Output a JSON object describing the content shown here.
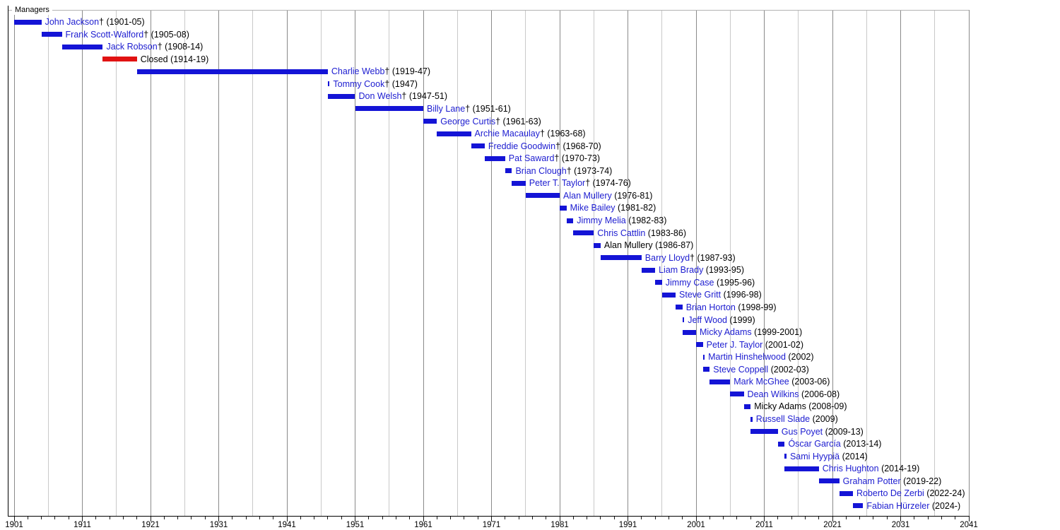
{
  "chart_data": {
    "type": "gantt-timeline",
    "title": "Managers",
    "x_axis": {
      "min": 1901,
      "max": 2041,
      "major_tick_interval": 10,
      "minor_tick_interval": 2,
      "gridline_interval": 5,
      "tick_labels": [
        "1901",
        "1911",
        "1921",
        "1931",
        "1941",
        "1951",
        "1961",
        "1971",
        "1981",
        "1991",
        "2001",
        "2011",
        "2021",
        "2031",
        "2041"
      ]
    },
    "colors": {
      "bar_blue": "#1414d6",
      "bar_red": "#e11212",
      "link_text": "#1c1cd0",
      "plain_text": "#000000",
      "grid_decade": "#8a8a8a",
      "grid_minor": "#c9c9c9",
      "frame": "#b3b3b3",
      "axis": "#000000"
    },
    "bars": [
      {
        "name": "John Jackson",
        "dagger": true,
        "years": "(1901-05)",
        "start": 1901,
        "end": 1905,
        "color": "blue",
        "link": true
      },
      {
        "name": "Frank Scott-Walford",
        "dagger": true,
        "years": "(1905-08)",
        "start": 1905,
        "end": 1908,
        "color": "blue",
        "link": true
      },
      {
        "name": "Jack Robson",
        "dagger": true,
        "years": "(1908-14)",
        "start": 1908,
        "end": 1914,
        "color": "blue",
        "link": true
      },
      {
        "name": "Closed",
        "dagger": false,
        "years": "(1914-19)",
        "start": 1914,
        "end": 1919,
        "color": "red",
        "link": false
      },
      {
        "name": "Charlie Webb",
        "dagger": true,
        "years": "(1919-47)",
        "start": 1919,
        "end": 1947,
        "color": "blue",
        "link": true
      },
      {
        "name": "Tommy Cook",
        "dagger": true,
        "years": "(1947)",
        "start": 1947,
        "end": 1947,
        "color": "blue",
        "link": true
      },
      {
        "name": "Don Welsh",
        "dagger": true,
        "years": "(1947-51)",
        "start": 1947,
        "end": 1951,
        "color": "blue",
        "link": true
      },
      {
        "name": "Billy Lane",
        "dagger": true,
        "years": "(1951-61)",
        "start": 1951,
        "end": 1961,
        "color": "blue",
        "link": true
      },
      {
        "name": "George Curtis",
        "dagger": true,
        "years": "(1961-63)",
        "start": 1961,
        "end": 1963,
        "color": "blue",
        "link": true
      },
      {
        "name": "Archie Macaulay",
        "dagger": true,
        "years": "(1963-68)",
        "start": 1963,
        "end": 1968,
        "color": "blue",
        "link": true
      },
      {
        "name": "Freddie Goodwin",
        "dagger": true,
        "years": "(1968-70)",
        "start": 1968,
        "end": 1970,
        "color": "blue",
        "link": true
      },
      {
        "name": "Pat Saward",
        "dagger": true,
        "years": "(1970-73)",
        "start": 1970,
        "end": 1973,
        "color": "blue",
        "link": true
      },
      {
        "name": "Brian Clough",
        "dagger": true,
        "years": "(1973-74)",
        "start": 1973,
        "end": 1974,
        "color": "blue",
        "link": true
      },
      {
        "name": "Peter T. Taylor",
        "dagger": true,
        "years": "(1974-76)",
        "start": 1974,
        "end": 1976,
        "color": "blue",
        "link": true
      },
      {
        "name": "Alan Mullery",
        "dagger": false,
        "years": "(1976-81)",
        "start": 1976,
        "end": 1981,
        "color": "blue",
        "link": true
      },
      {
        "name": "Mike Bailey",
        "dagger": false,
        "years": "(1981-82)",
        "start": 1981,
        "end": 1982,
        "color": "blue",
        "link": true
      },
      {
        "name": "Jimmy Melia",
        "dagger": false,
        "years": "(1982-83)",
        "start": 1982,
        "end": 1983,
        "color": "blue",
        "link": true
      },
      {
        "name": "Chris Cattlin",
        "dagger": false,
        "years": "(1983-86)",
        "start": 1983,
        "end": 1986,
        "color": "blue",
        "link": true
      },
      {
        "name": "Alan Mullery",
        "dagger": false,
        "years": "(1986-87)",
        "start": 1986,
        "end": 1987,
        "color": "blue",
        "link": false
      },
      {
        "name": "Barry Lloyd",
        "dagger": true,
        "years": "(1987-93)",
        "start": 1987,
        "end": 1993,
        "color": "blue",
        "link": true
      },
      {
        "name": "Liam Brady",
        "dagger": false,
        "years": "(1993-95)",
        "start": 1993,
        "end": 1995,
        "color": "blue",
        "link": true
      },
      {
        "name": "Jimmy Case",
        "dagger": false,
        "years": "(1995-96)",
        "start": 1995,
        "end": 1996,
        "color": "blue",
        "link": true
      },
      {
        "name": "Steve Gritt",
        "dagger": false,
        "years": "(1996-98)",
        "start": 1996,
        "end": 1998,
        "color": "blue",
        "link": true
      },
      {
        "name": "Brian Horton",
        "dagger": false,
        "years": "(1998-99)",
        "start": 1998,
        "end": 1999,
        "color": "blue",
        "link": true
      },
      {
        "name": "Jeff Wood",
        "dagger": false,
        "years": "(1999)",
        "start": 1999,
        "end": 1999,
        "color": "blue",
        "link": true
      },
      {
        "name": "Micky Adams",
        "dagger": false,
        "years": "(1999-2001)",
        "start": 1999,
        "end": 2001,
        "color": "blue",
        "link": true
      },
      {
        "name": "Peter J. Taylor",
        "dagger": false,
        "years": "(2001-02)",
        "start": 2001,
        "end": 2002,
        "color": "blue",
        "link": true
      },
      {
        "name": "Martin Hinshelwood",
        "dagger": false,
        "years": "(2002)",
        "start": 2002,
        "end": 2002,
        "color": "blue",
        "link": true
      },
      {
        "name": "Steve Coppell",
        "dagger": false,
        "years": "(2002-03)",
        "start": 2002,
        "end": 2003,
        "color": "blue",
        "link": true
      },
      {
        "name": "Mark McGhee",
        "dagger": false,
        "years": "(2003-06)",
        "start": 2003,
        "end": 2006,
        "color": "blue",
        "link": true
      },
      {
        "name": "Dean Wilkins",
        "dagger": false,
        "years": "(2006-08)",
        "start": 2006,
        "end": 2008,
        "color": "blue",
        "link": true
      },
      {
        "name": "Micky Adams",
        "dagger": false,
        "years": "(2008-09)",
        "start": 2008,
        "end": 2009,
        "color": "blue",
        "link": false
      },
      {
        "name": "Russell Slade",
        "dagger": false,
        "years": "(2009)",
        "start": 2009,
        "end": 2009,
        "color": "blue",
        "link": true
      },
      {
        "name": "Gus Poyet",
        "dagger": false,
        "years": "(2009-13)",
        "start": 2009,
        "end": 2013,
        "color": "blue",
        "link": true
      },
      {
        "name": "Óscar García",
        "dagger": false,
        "years": "(2013-14)",
        "start": 2013,
        "end": 2014,
        "color": "blue",
        "link": true
      },
      {
        "name": "Sami Hyypiä",
        "dagger": false,
        "years": "(2014)",
        "start": 2014,
        "end": 2014,
        "color": "blue",
        "link": true
      },
      {
        "name": "Chris Hughton",
        "dagger": false,
        "years": "(2014-19)",
        "start": 2014,
        "end": 2019,
        "color": "blue",
        "link": true
      },
      {
        "name": "Graham Potter",
        "dagger": false,
        "years": "(2019-22)",
        "start": 2019,
        "end": 2022,
        "color": "blue",
        "link": true
      },
      {
        "name": "Roberto De Zerbi",
        "dagger": false,
        "years": "(2022-24)",
        "start": 2022,
        "end": 2024,
        "color": "blue",
        "link": true
      },
      {
        "name": "Fabian Hürzeler",
        "dagger": false,
        "years": "(2024-)",
        "start": 2024,
        "end": 2025.5,
        "color": "blue",
        "link": true
      }
    ]
  }
}
